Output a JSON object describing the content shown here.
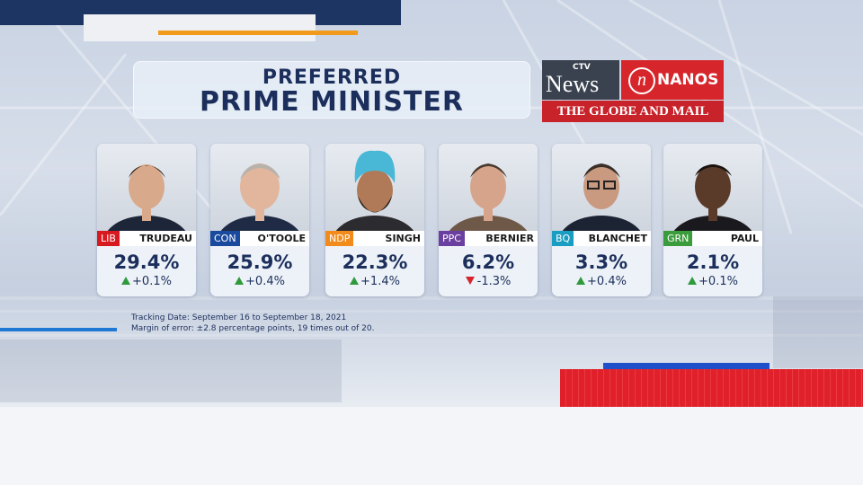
{
  "title": {
    "line1": "PREFERRED",
    "line2": "PRIME MINISTER"
  },
  "logo": {
    "ctv_small": "CTV",
    "ctv_news": "News",
    "nanos_symbol": "n",
    "nanos": "NANOS",
    "globe": "THE GLOBE AND MAIL"
  },
  "colors": {
    "navy": "#1c2f5c",
    "up": "#2f9a3c",
    "down": "#d6262b",
    "lib": "#d71920",
    "con": "#1a4a9e",
    "ndp": "#f38b1c",
    "ppc": "#6b3fa0",
    "bq": "#1a9dc2",
    "grn": "#3a9c3a"
  },
  "candidates": [
    {
      "party": "LIB",
      "name": "TRUDEAU",
      "pct": "29.4%",
      "change": "+0.1%",
      "trend": "up",
      "party_color": "#d71920"
    },
    {
      "party": "CON",
      "name": "O'TOOLE",
      "pct": "25.9%",
      "change": "+0.4%",
      "trend": "up",
      "party_color": "#1a4a9e"
    },
    {
      "party": "NDP",
      "name": "SINGH",
      "pct": "22.3%",
      "change": "+1.4%",
      "trend": "up",
      "party_color": "#f38b1c"
    },
    {
      "party": "PPC",
      "name": "BERNIER",
      "pct": "6.2%",
      "change": "-1.3%",
      "trend": "down",
      "party_color": "#6b3fa0"
    },
    {
      "party": "BQ",
      "name": "BLANCHET",
      "pct": "3.3%",
      "change": "+0.4%",
      "trend": "up",
      "party_color": "#1a9dc2"
    },
    {
      "party": "GRN",
      "name": "PAUL",
      "pct": "2.1%",
      "change": "+0.1%",
      "trend": "up",
      "party_color": "#3a9c3a"
    }
  ],
  "notes": {
    "tracking": "Tracking Date: September 16 to September 18, 2021",
    "margin": "Margin of error: ±2.8 percentage points, 19 times out of 20."
  }
}
